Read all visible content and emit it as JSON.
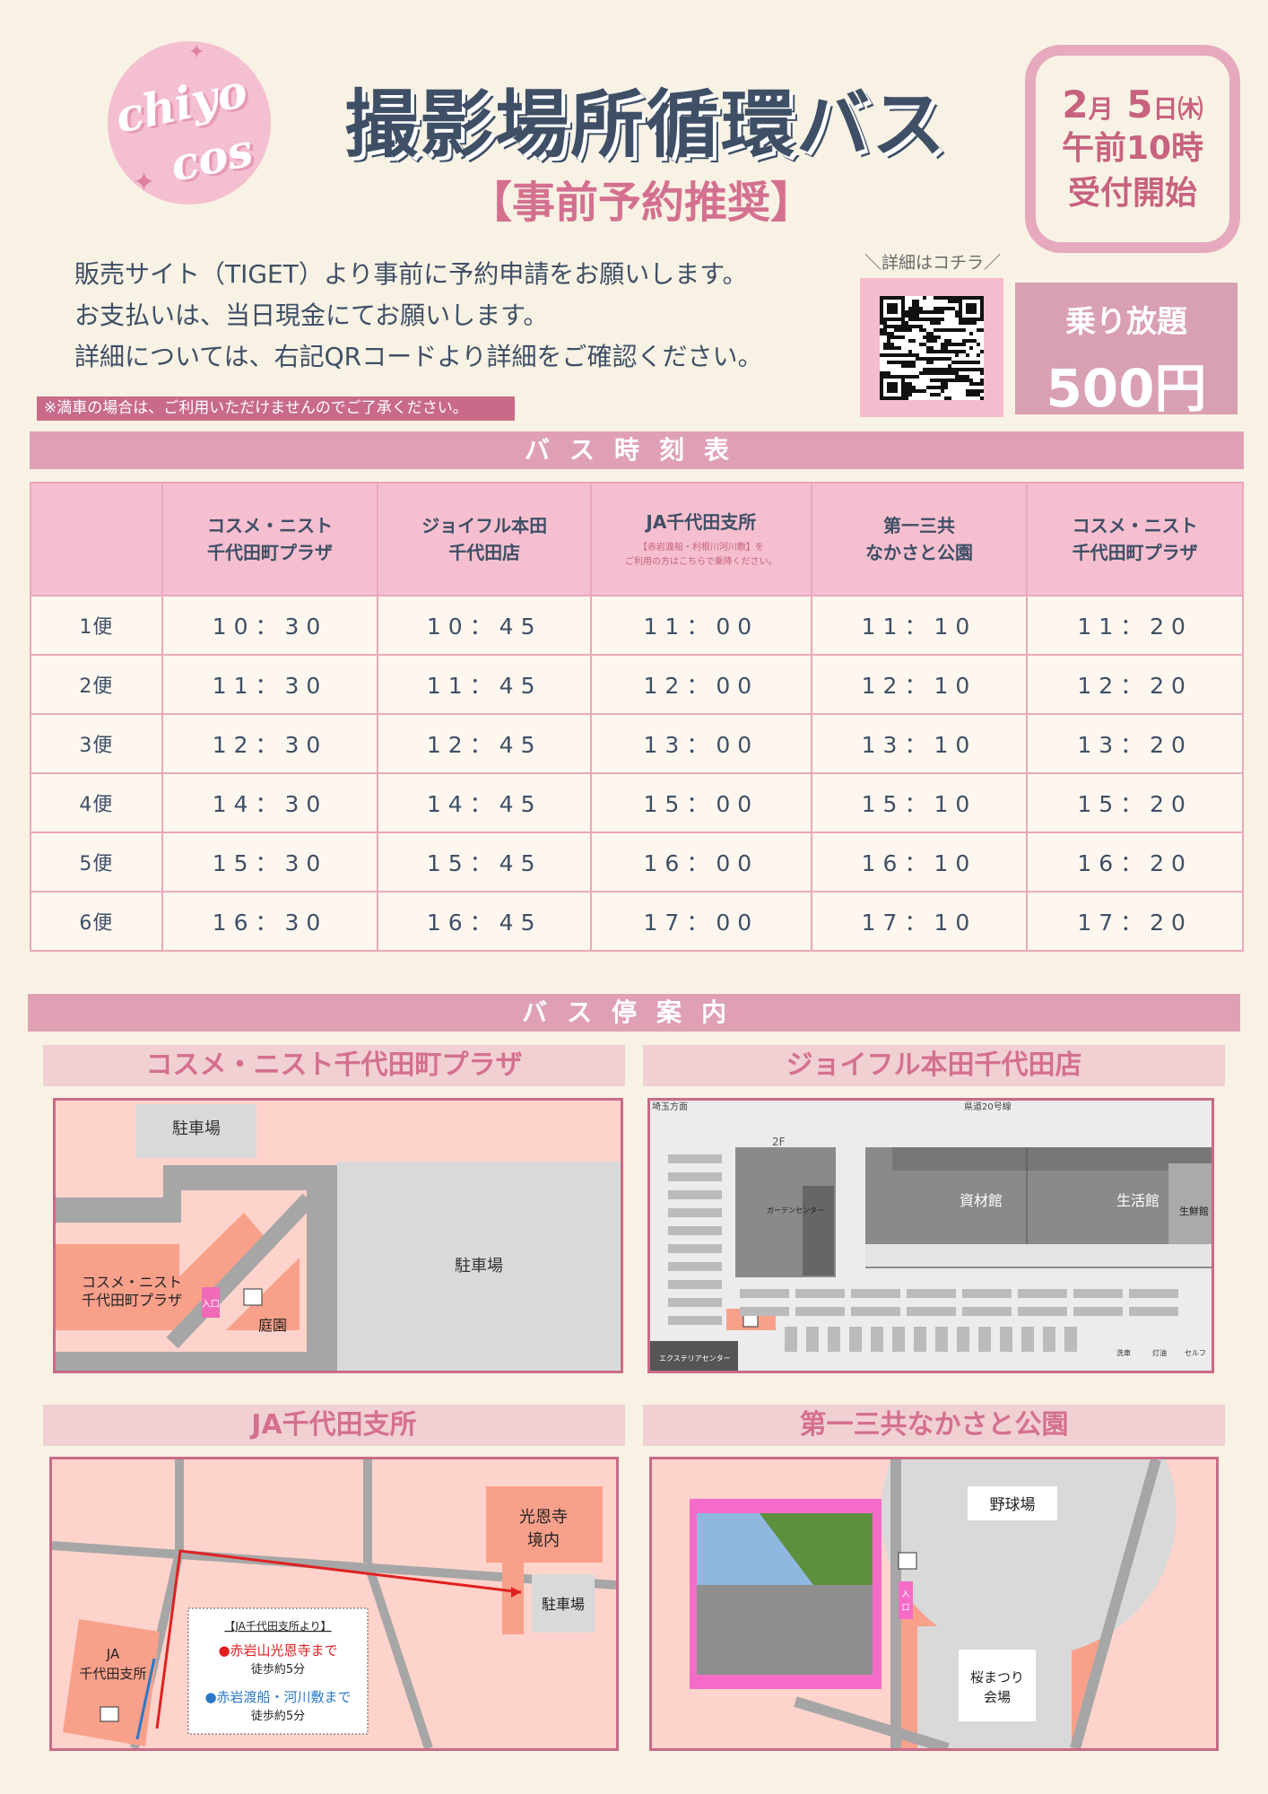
{
  "logo": {
    "line1": "chiyo",
    "line2": "cos"
  },
  "header": {
    "title": "撮影場所循環バス",
    "subtitle": "【事前予約推奨】"
  },
  "badge": {
    "month": "2",
    "month_unit": "月",
    "day": "5",
    "day_unit": "日",
    "weekday": "㈭",
    "time": "午前10時",
    "start": "受付開始"
  },
  "intro": [
    "販売サイト（TIGET）より事前に予約申請をお願いします。",
    "お支払いは、当日現金にてお願いします。",
    "詳細については、右記QRコードより詳細をご確認ください。"
  ],
  "qr": {
    "label": "＼詳細はコチラ／"
  },
  "price": {
    "label": "乗り放題",
    "amount": "500円"
  },
  "note": "※満車の場合は、ご利用いただけませんのでご了承ください。",
  "timetable": {
    "title": "バス時刻表",
    "headers": [
      {
        "l1": "",
        "l2": ""
      },
      {
        "l1": "コスメ・ニスト",
        "l2": "千代田町プラザ"
      },
      {
        "l1": "ジョイフル本田",
        "l2": "千代田店"
      },
      {
        "l1": "JA千代田支所",
        "l2": "",
        "note1": "【赤岩渡船・利根川河川敷】を",
        "note2": "ご利用の方はこちらで乗降ください。"
      },
      {
        "l1": "第一三共",
        "l2": "なかさと公園"
      },
      {
        "l1": "コスメ・ニスト",
        "l2": "千代田町プラザ"
      }
    ],
    "rows": [
      [
        "1便",
        "10：30",
        "10：45",
        "11：00",
        "11：10",
        "11：20"
      ],
      [
        "2便",
        "11：30",
        "11：45",
        "12：00",
        "12：10",
        "12：20"
      ],
      [
        "3便",
        "12：30",
        "12：45",
        "13：00",
        "13：10",
        "13：20"
      ],
      [
        "4便",
        "14：30",
        "14：45",
        "15：00",
        "15：10",
        "15：20"
      ],
      [
        "5便",
        "15：30",
        "15：45",
        "16：00",
        "16：10",
        "16：20"
      ],
      [
        "6便",
        "16：30",
        "16：45",
        "17：00",
        "17：10",
        "17：20"
      ]
    ]
  },
  "stops": {
    "title": "バス停案内",
    "cosme": {
      "title": "コスメ・ニスト千代田町プラザ",
      "parking1": "駐車場",
      "parking2": "駐車場",
      "store1": "コスメ・ニスト",
      "store2": "千代田町プラザ",
      "entrance": "入口",
      "garden": "庭園"
    },
    "joyful": {
      "title": "ジョイフル本田千代田店",
      "dir": "埼玉方面",
      "road": "県道20号線",
      "floor": "2F",
      "garden": "ガーデンセンター",
      "shizai": "資材館",
      "seikatsu": "生活館",
      "seisen": "生鮮館",
      "exterior": "エクステリアセンター",
      "wash": "洗車",
      "oil": "灯油",
      "self": "セルフ"
    },
    "ja": {
      "title": "JA千代田支所",
      "temple1": "光恩寺",
      "temple2": "境内",
      "parking": "駐車場",
      "ja1": "JA",
      "ja2": "千代田支所",
      "box_title": "【JA千代田支所より】",
      "dest1": "●赤岩山光恩寺まで",
      "walk1": "徒歩約5分",
      "dest2": "●赤岩渡船・河川敷まで",
      "walk2": "徒歩約5分"
    },
    "park": {
      "title": "第一三共なかさと公園",
      "baseball": "野球場",
      "sakura1": "桜まつり",
      "sakura2": "会場",
      "entrance1": "入",
      "entrance2": "口"
    }
  },
  "colors": {
    "pink": "#dfa0b4",
    "navy": "#3e4f66",
    "rose": "#c96b88",
    "cream": "#f8f2e4",
    "salmon": "#f9a08a",
    "red": "#e02020",
    "blue": "#2a78c8"
  }
}
